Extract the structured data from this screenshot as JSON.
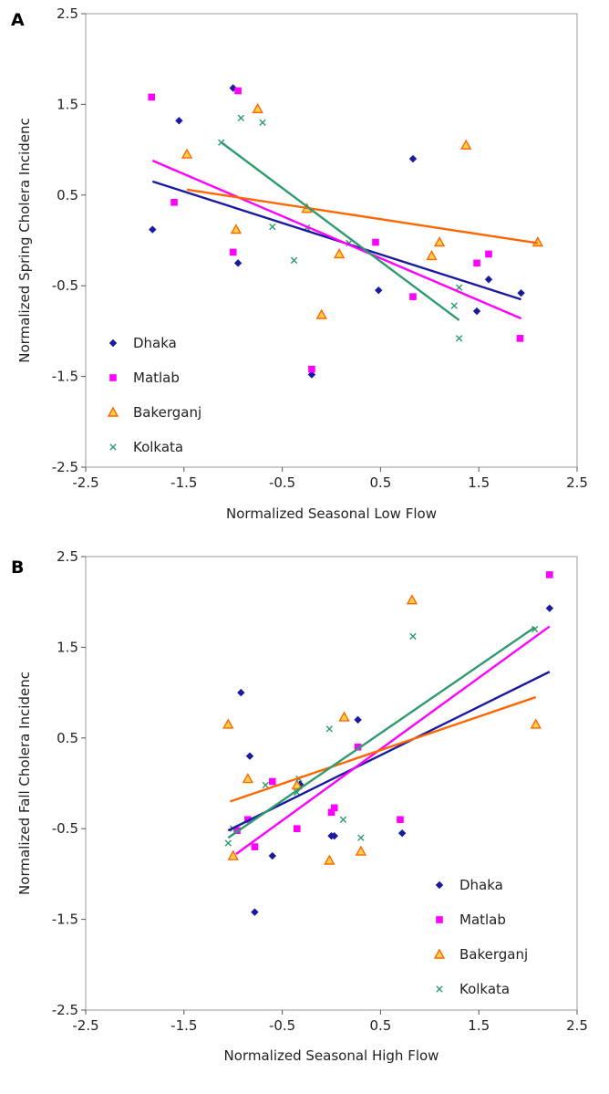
{
  "chart_data": [
    {
      "type": "scatter",
      "panel_label": "A",
      "xlabel": "Normalized Seasonal Low Flow",
      "ylabel": "Normalized Spring Cholera Incidenc",
      "xlim": [
        -2.5,
        2.5
      ],
      "ylim": [
        -2.5,
        2.5
      ],
      "xticks": [
        "-2.5",
        "-1.5",
        "-0.5",
        "0.5",
        "1.5",
        "2.5"
      ],
      "yticks": [
        "2.5",
        "1.5",
        "0.5",
        "-0.5",
        "-1.5",
        "-2.5"
      ],
      "legend_position": "bottom-left",
      "grid": false,
      "series": [
        {
          "name": "Dhaka",
          "marker": "diamond",
          "color": "#1a1aa0",
          "x": [
            -1.82,
            -1.55,
            -1.0,
            -0.95,
            -0.2,
            0.48,
            0.83,
            1.48,
            1.6,
            1.93
          ],
          "y": [
            0.12,
            1.32,
            1.68,
            -0.25,
            -1.48,
            -0.55,
            0.9,
            -0.78,
            -0.43,
            -0.58
          ],
          "fit": [
            [
              -1.82,
              0.65
            ],
            [
              1.93,
              -0.65
            ]
          ]
        },
        {
          "name": "Matlab",
          "marker": "square",
          "color": "#ff00ff",
          "x": [
            -1.83,
            -1.6,
            -1.0,
            -0.95,
            -0.2,
            0.45,
            0.83,
            1.48,
            1.6,
            1.92
          ],
          "y": [
            1.58,
            0.42,
            -0.13,
            1.65,
            -1.42,
            -0.02,
            -0.62,
            -0.25,
            -0.15,
            -1.08
          ],
          "fit": [
            [
              -1.82,
              0.88
            ],
            [
              1.93,
              -0.86
            ]
          ]
        },
        {
          "name": "Bakerganj",
          "marker": "triangle",
          "color": "#ff6600",
          "x": [
            -1.47,
            -0.97,
            -0.75,
            -0.25,
            -0.1,
            0.08,
            1.02,
            1.1,
            1.37,
            2.1
          ],
          "y": [
            0.95,
            0.12,
            1.45,
            0.35,
            -0.82,
            -0.15,
            -0.17,
            -0.02,
            1.05,
            -0.02
          ],
          "fit": [
            [
              -1.47,
              0.56
            ],
            [
              2.1,
              -0.03
            ]
          ]
        },
        {
          "name": "Kolkata",
          "marker": "x",
          "color": "#2e9a6e",
          "x": [
            -1.12,
            -0.92,
            -0.7,
            -0.6,
            -0.38,
            -0.25,
            0.18,
            1.25,
            1.3,
            1.3
          ],
          "y": [
            1.08,
            1.35,
            1.3,
            0.15,
            -0.22,
            0.14,
            -0.03,
            -0.72,
            -0.52,
            -1.08
          ],
          "fit": [
            [
              -1.12,
              1.08
            ],
            [
              1.3,
              -0.88
            ]
          ]
        }
      ]
    },
    {
      "type": "scatter",
      "panel_label": "B",
      "xlabel": "Normalized Seasonal High Flow",
      "ylabel": "Normalized Fall Cholera Incidenc",
      "xlim": [
        -2.5,
        2.5
      ],
      "ylim": [
        -2.5,
        2.5
      ],
      "xticks": [
        "-2.5",
        "-1.5",
        "-0.5",
        "0.5",
        "1.5",
        "2.5"
      ],
      "yticks": [
        "2.5",
        "1.5",
        "0.5",
        "-0.5",
        "-1.5",
        "-2.5"
      ],
      "legend_position": "bottom-right",
      "grid": false,
      "series": [
        {
          "name": "Dhaka",
          "marker": "diamond",
          "color": "#1a1aa0",
          "x": [
            -0.92,
            -0.83,
            -0.78,
            -0.6,
            -0.32,
            0.0,
            0.03,
            0.27,
            0.72,
            2.22
          ],
          "y": [
            1.0,
            0.3,
            -1.42,
            -0.8,
            -0.01,
            -0.58,
            -0.58,
            0.7,
            -0.55,
            1.93
          ],
          "fit": [
            [
              -1.05,
              -0.52
            ],
            [
              2.22,
              1.23
            ]
          ]
        },
        {
          "name": "Matlab",
          "marker": "square",
          "color": "#ff00ff",
          "x": [
            -0.96,
            -0.85,
            -0.78,
            -0.6,
            -0.35,
            0.0,
            0.03,
            0.27,
            0.7,
            2.22
          ],
          "y": [
            -0.52,
            -0.4,
            -0.7,
            0.02,
            -0.5,
            -0.32,
            -0.27,
            0.4,
            -0.4,
            2.3
          ],
          "fit": [
            [
              -0.97,
              -0.78
            ],
            [
              2.22,
              1.73
            ]
          ]
        },
        {
          "name": "Bakerganj",
          "marker": "triangle",
          "color": "#ff6600",
          "x": [
            -1.05,
            -1.0,
            -0.85,
            -0.35,
            -0.02,
            0.13,
            0.3,
            0.82,
            2.08
          ],
          "y": [
            0.65,
            -0.8,
            0.05,
            -0.02,
            -0.85,
            0.73,
            -0.75,
            2.02,
            0.65
          ],
          "fit": [
            [
              -1.03,
              -0.2
            ],
            [
              2.08,
              0.95
            ]
          ]
        },
        {
          "name": "Kolkata",
          "marker": "x",
          "color": "#2e9a6e",
          "x": [
            -1.05,
            -1.0,
            -0.67,
            -0.35,
            -0.33,
            -0.02,
            0.12,
            0.3,
            0.83,
            2.07
          ],
          "y": [
            -0.66,
            -0.5,
            -0.02,
            -0.1,
            0.05,
            0.6,
            -0.4,
            -0.6,
            1.62,
            1.7
          ],
          "fit": [
            [
              -1.05,
              -0.6
            ],
            [
              2.07,
              1.72
            ]
          ]
        }
      ]
    }
  ]
}
